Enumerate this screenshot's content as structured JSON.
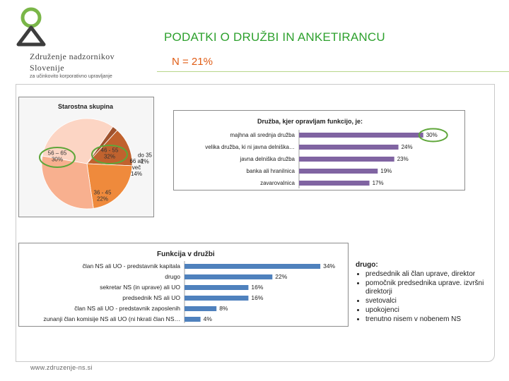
{
  "header": {
    "title": "PODATKI O DRUŽBI IN ANKETIRANCU",
    "subtitle": "N = 21%",
    "org_line1": "Združenje nadzornikov",
    "org_line2": "Slovenije",
    "org_tagline": "za učinkovito korporativno upravljanje"
  },
  "colors": {
    "brand_green": "#2ea12e",
    "accent_orange": "#e05d16",
    "bar_purple": "#8064a2",
    "bar_blue": "#4f81bd",
    "highlight_ellipse": "#5fa63a"
  },
  "chart_data": [
    {
      "type": "pie",
      "title": "Starostna skupina",
      "categories": [
        "46 - 55",
        "do 35",
        "66 ali več",
        "36 - 45",
        "56 – 65"
      ],
      "values": [
        32,
        2,
        14,
        22,
        30
      ],
      "labels": [
        "46 - 55\n32%",
        "do 35\n2%",
        "66 ali\nveč\n14%",
        "36 - 45\n22%",
        "56 – 65\n30%"
      ],
      "highlighted": [
        "46 - 55",
        "56 – 65"
      ]
    },
    {
      "type": "bar",
      "orientation": "horizontal",
      "title": "Družba, kjer opravljam funkcijo, je:",
      "categories": [
        "majhna ali srednja družba",
        "velika družba, ki ni javna delniška…",
        "javna delniška družba",
        "banka ali hranilnica",
        "zavarovalnica"
      ],
      "values": [
        30,
        24,
        23,
        19,
        17
      ],
      "value_labels": [
        "30%",
        "24%",
        "23%",
        "19%",
        "17%"
      ],
      "xlim": [
        0,
        35
      ],
      "highlighted": [
        "majhna ali srednja družba"
      ]
    },
    {
      "type": "bar",
      "orientation": "horizontal",
      "title": "Funkcija  v družbi",
      "categories": [
        "član NS ali UO - predstavnik kapitala",
        "drugo",
        "sekretar NS (in uprave) ali UO",
        "predsednik NS ali UO",
        "član NS ali UO - predstavnik zaposlenih",
        "zunanji član komisije NS ali UO (ni hkrati član NS…"
      ],
      "values": [
        34,
        22,
        16,
        16,
        8,
        4
      ],
      "value_labels": [
        "34%",
        "22%",
        "16%",
        "16%",
        "8%",
        "4%"
      ],
      "xlim": [
        0,
        40
      ]
    }
  ],
  "note": {
    "heading": "drugo:",
    "items": [
      "predsednik ali član uprave, direktor",
      "pomočnik predsednika uprave. izvršni direktorji",
      "svetovalci",
      "upokojenci",
      "trenutno nisem v nobenem NS"
    ]
  },
  "footer": "www.zdruzenje-ns.si"
}
